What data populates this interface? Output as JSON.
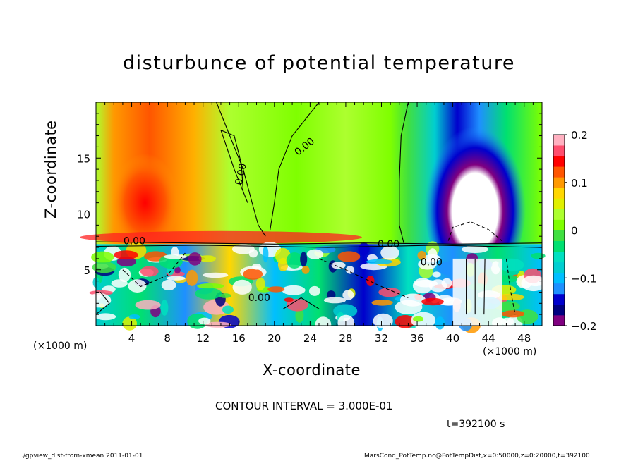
{
  "chart_data": {
    "type": "heatmap",
    "title": "disturbunce of potential temperature",
    "xlabel": "X-coordinate",
    "ylabel": "Z-coordinate",
    "x_unit_label": "(×1000 m)",
    "xlim": [
      0,
      50
    ],
    "ylim": [
      0,
      20
    ],
    "x_ticks": [
      4,
      8,
      12,
      16,
      20,
      24,
      28,
      32,
      36,
      40,
      44,
      48
    ],
    "y_ticks": [
      5,
      10,
      15
    ],
    "colorbar": {
      "range": [
        -0.2,
        0.2
      ],
      "tick_values": [
        0.2,
        0.1,
        0,
        -0.1,
        -0.2
      ],
      "tick_labels": [
        "0.2",
        "0.1",
        "0",
        "−0.1",
        "−0.2"
      ],
      "colors": [
        "#800080",
        "#000080",
        "#0000cd",
        "#1e90ff",
        "#00bfff",
        "#00ced1",
        "#00e0c0",
        "#00e070",
        "#40e040",
        "#7fff00",
        "#adff2f",
        "#e0f000",
        "#ffd700",
        "#ff9900",
        "#ff5500",
        "#ff0000",
        "#ff4d6d",
        "#ffb0c0"
      ]
    },
    "contour_labels": [
      "0.00",
      "0.00",
      "0.00",
      "0.00",
      "0.00",
      "0.00"
    ],
    "contour_interval_text": "CONTOUR INTERVAL = 3.000E-01",
    "time_text": "t=392100 s"
  },
  "footer": {
    "left": "./gpview_dist-from-xmean  2011-01-01",
    "right": "MarsCond_PotTemp.nc@PotTempDist,x=0:50000,z=0:20000,t=392100"
  }
}
